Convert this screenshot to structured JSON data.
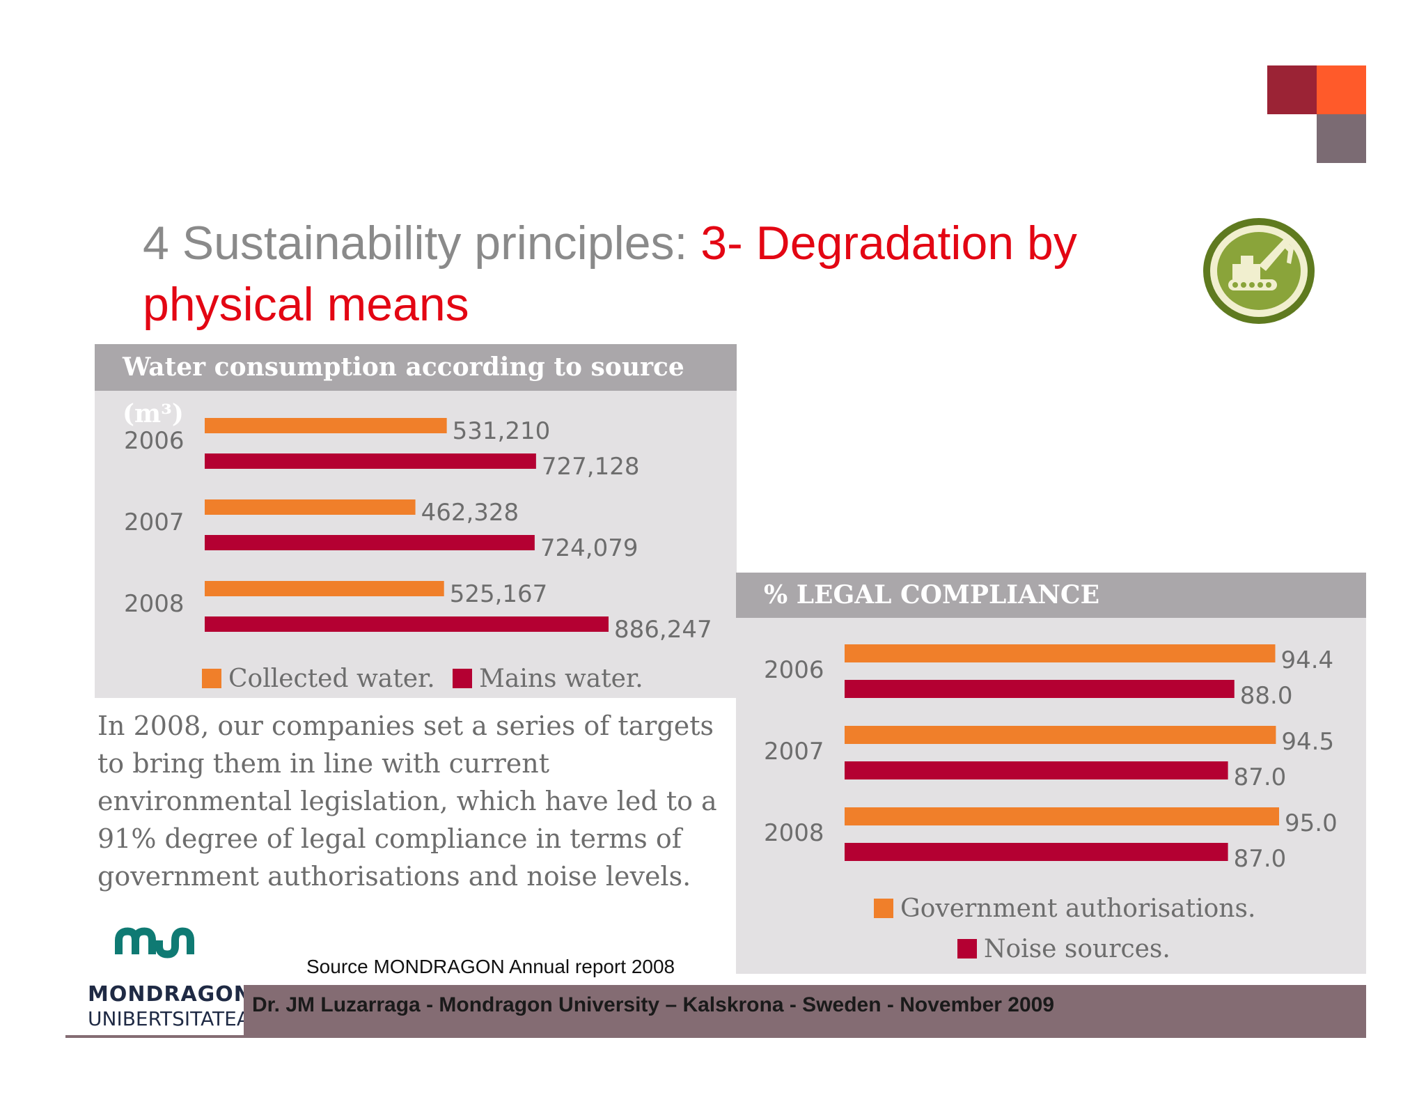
{
  "slide": {
    "title_plain": "4 Sustainability principles: ",
    "title_accent_line1": "3- Degradation by",
    "title_accent_line2": "physical means",
    "paragraph": "In 2008, our companies set a series of targets to bring them in line with current environmental legislation, which have led to a 91% degree of legal compliance in terms of government authorisations and noise levels.",
    "source": "Source MONDRAGON Annual report 2008",
    "footer": "Dr. JM Luzarraga - Mondragon University – Kalskrona - Sweden - November 2009",
    "logo_line1": "MONDRAGON",
    "logo_line2": "UNIBERTSITATEA",
    "icon": "excavator-badge-icon",
    "colors": {
      "orange": "#f07f2a",
      "crimson": "#b40032",
      "title_accent": "#e30613"
    }
  },
  "chart_data": [
    {
      "type": "bar",
      "orientation": "horizontal",
      "title": "Water consumption according to source (m³)",
      "categories": [
        "2006",
        "2007",
        "2008"
      ],
      "series": [
        {
          "name": "Collected water.",
          "color": "#f07f2a",
          "values": [
            531210,
            462328,
            525167
          ],
          "labels": [
            "531,210",
            "462,328",
            "525,167"
          ]
        },
        {
          "name": "Mains water.",
          "color": "#b40032",
          "values": [
            727128,
            724079,
            886247
          ],
          "labels": [
            "727,128",
            "724,079",
            "886,247"
          ]
        }
      ],
      "xlim": [
        0,
        900000
      ],
      "legend": "bottom",
      "grid": false
    },
    {
      "type": "bar",
      "orientation": "horizontal",
      "title": "% LEGAL COMPLIANCE",
      "categories": [
        "2006",
        "2007",
        "2008"
      ],
      "series": [
        {
          "name": "Government authorisations.",
          "color": "#f07f2a",
          "values": [
            94.4,
            94.5,
            95.0
          ],
          "labels": [
            "94.4",
            "94.5",
            "95.0"
          ]
        },
        {
          "name": "Noise sources.",
          "color": "#b40032",
          "values": [
            88.0,
            87.0,
            87.0
          ],
          "labels": [
            "88.0",
            "87.0",
            "87.0"
          ]
        }
      ],
      "legend": "bottom",
      "grid": false
    }
  ]
}
